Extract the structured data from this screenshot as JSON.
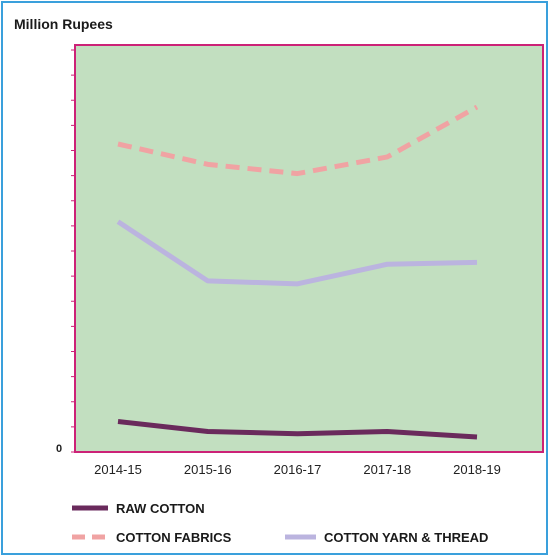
{
  "chart_data": {
    "type": "line",
    "unit_label": "Million Rupees",
    "categories": [
      "2014-15",
      "2015-16",
      "2016-17",
      "2017-18",
      "2018-19"
    ],
    "y_tick_label": "0",
    "ylim": [
      0,
      100
    ],
    "grid": false,
    "legend_position": "bottom",
    "background_color": "#c2dfc0",
    "border_color": "#cc2277",
    "series": [
      {
        "name": "RAW COTTON",
        "key": "raw_cotton",
        "values": [
          5,
          2.3,
          1.7,
          2.3,
          0.8
        ],
        "color": "#6a2a5c",
        "dash": "solid"
      },
      {
        "name": "COTTON FABRICS",
        "key": "cotton_fabrics",
        "values": [
          80,
          74.5,
          72,
          76.5,
          90
        ],
        "color": "#f0a3a3",
        "dash": "dashed"
      },
      {
        "name": "COTTON YARN & THREAD",
        "key": "cotton_yarn",
        "values": [
          59,
          43,
          42.2,
          47.5,
          48
        ],
        "color": "#bbb4df",
        "dash": "solid"
      }
    ]
  }
}
